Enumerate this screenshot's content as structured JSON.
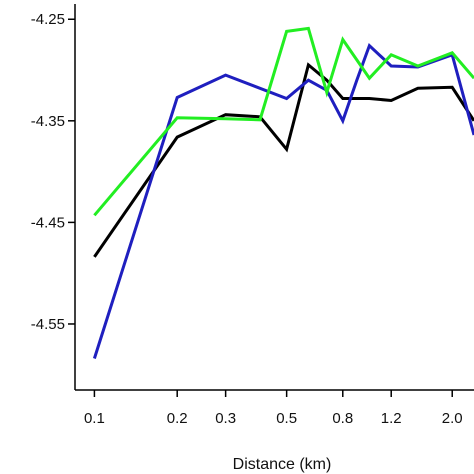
{
  "chart_data": {
    "type": "line",
    "title": "",
    "xlabel": "Distance (km)",
    "ylabel": "",
    "x_scale": "log",
    "xlim": [
      0.085,
      2.4
    ],
    "ylim": [
      -4.615,
      -4.235
    ],
    "x_ticks": [
      {
        "value": 0.1,
        "label": "0.1"
      },
      {
        "value": 0.2,
        "label": "0.2"
      },
      {
        "value": 0.3,
        "label": "0.3"
      },
      {
        "value": 0.5,
        "label": "0.5"
      },
      {
        "value": 0.8,
        "label": "0.8"
      },
      {
        "value": 1.2,
        "label": "1.2"
      },
      {
        "value": 2.0,
        "label": "2.0"
      }
    ],
    "y_ticks": [
      {
        "value": -4.25,
        "label": "-4.25"
      },
      {
        "value": -4.35,
        "label": "-4.35"
      },
      {
        "value": -4.45,
        "label": "-4.45"
      },
      {
        "value": -4.55,
        "label": "-4.55"
      }
    ],
    "grid": false,
    "series": [
      {
        "color": "#000000",
        "x": [
          0.1,
          0.2,
          0.3,
          0.4,
          0.5,
          0.6,
          0.7,
          0.8,
          1.0,
          1.2,
          1.5,
          2.0,
          2.4
        ],
        "y": [
          -4.484,
          -4.366,
          -4.344,
          -4.346,
          -4.378,
          -4.295,
          -4.31,
          -4.328,
          -4.328,
          -4.33,
          -4.318,
          -4.317,
          -4.35
        ]
      },
      {
        "color": "#1f1fbf",
        "x": [
          0.1,
          0.2,
          0.3,
          0.5,
          0.6,
          0.7,
          0.8,
          0.9,
          1.0,
          1.2,
          1.5,
          2.0,
          2.4
        ],
        "y": [
          -4.584,
          -4.327,
          -4.305,
          -4.328,
          -4.31,
          -4.32,
          -4.35,
          -4.31,
          -4.276,
          -4.296,
          -4.297,
          -4.285,
          -4.364
        ]
      },
      {
        "color": "#22ee22",
        "x": [
          0.1,
          0.2,
          0.3,
          0.4,
          0.5,
          0.6,
          0.7,
          0.8,
          0.9,
          1.0,
          1.2,
          1.5,
          2.0,
          2.4
        ],
        "y": [
          -4.443,
          -4.347,
          -4.348,
          -4.349,
          -4.262,
          -4.259,
          -4.322,
          -4.27,
          -4.29,
          -4.308,
          -4.285,
          -4.296,
          -4.283,
          -4.308
        ]
      }
    ]
  }
}
